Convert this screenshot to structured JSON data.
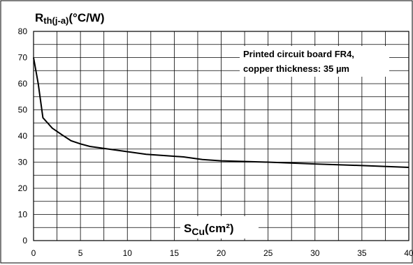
{
  "chart_data": {
    "type": "line",
    "ylabel_main": "R",
    "ylabel_sub": "th(j-a)",
    "ylabel_unit": "(°C/W)",
    "xlabel_main": "S",
    "xlabel_sub": "Cu",
    "xlabel_unit": "(cm²)",
    "annotation": [
      "Printed circuit board FR4,",
      "copper thickness: 35 µm"
    ],
    "xlim": [
      0,
      40
    ],
    "ylim": [
      0,
      80
    ],
    "x_ticks": [
      0,
      5,
      10,
      15,
      20,
      25,
      30,
      35,
      40
    ],
    "y_ticks": [
      0,
      10,
      20,
      30,
      40,
      50,
      60,
      70,
      80
    ],
    "grid": true,
    "series": [
      {
        "x": [
          0,
          0.5,
          1,
          2,
          3,
          4,
          5,
          6,
          8,
          10,
          12,
          14,
          16,
          18,
          20,
          22,
          25,
          30,
          35,
          40
        ],
        "y": [
          70,
          60,
          47,
          43,
          40.5,
          38.2,
          37,
          36,
          35,
          34,
          33,
          32.5,
          32,
          31,
          30.5,
          30.3,
          30,
          29.3,
          28.7,
          28
        ]
      }
    ]
  }
}
